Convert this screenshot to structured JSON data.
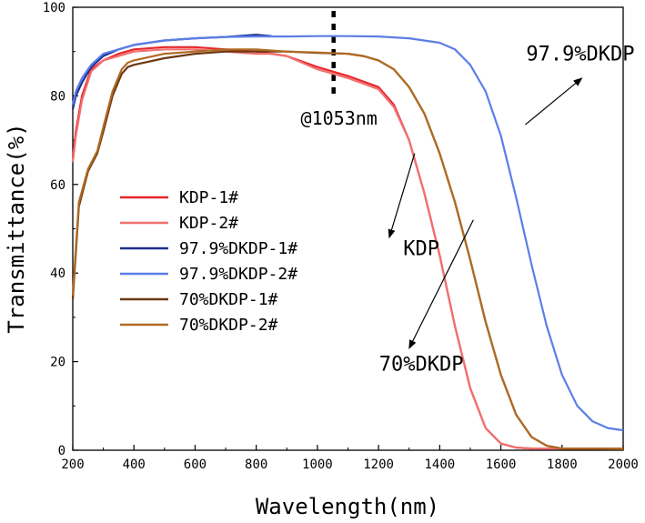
{
  "chart_data": {
    "type": "line",
    "title": "",
    "xlabel": "Wavelength(nm)",
    "ylabel": "Transmittance(%)",
    "xlim": [
      200,
      2000
    ],
    "ylim": [
      0,
      100
    ],
    "xticks": [
      200,
      400,
      600,
      800,
      1000,
      1200,
      1400,
      1600,
      1800,
      2000
    ],
    "yticks": [
      0,
      20,
      40,
      60,
      80,
      100
    ],
    "grid": false,
    "legend_position": "center-left",
    "marker_line": {
      "x": 1053,
      "label": "@1053nm"
    },
    "series": [
      {
        "name": "KDP-1#",
        "color": "#e8262b",
        "x": [
          200,
          210,
          230,
          260,
          300,
          350,
          400,
          500,
          600,
          700,
          800,
          850,
          900,
          1000,
          1100,
          1200,
          1250,
          1300,
          1350,
          1400,
          1450,
          1500,
          1550,
          1600,
          1650,
          1700,
          2000
        ],
        "y": [
          66,
          72,
          80,
          86,
          88,
          89.5,
          90.5,
          91,
          91,
          90.5,
          90,
          89.5,
          89,
          86.5,
          84.5,
          82,
          78,
          70,
          58,
          44,
          28,
          14,
          5,
          1.5,
          0.6,
          0.4,
          0.3
        ]
      },
      {
        "name": "KDP-2#",
        "color": "#f07070",
        "x": [
          200,
          210,
          230,
          260,
          300,
          350,
          400,
          500,
          600,
          700,
          800,
          850,
          900,
          1000,
          1100,
          1200,
          1250,
          1300,
          1350,
          1400,
          1450,
          1500,
          1550,
          1600,
          1650,
          1700,
          2000
        ],
        "y": [
          65,
          71,
          79,
          85.5,
          88,
          89,
          90,
          90.5,
          90.5,
          90,
          89.5,
          89.5,
          89,
          86,
          84,
          81.5,
          77.5,
          70,
          58,
          44,
          28,
          14,
          5,
          1.5,
          0.6,
          0.4,
          0.4
        ]
      },
      {
        "name": "97.9%DKDP-1#",
        "color": "#1f2e8c",
        "x": [
          200,
          210,
          230,
          260,
          300,
          350,
          400,
          500,
          600,
          700,
          800,
          850
        ],
        "y": [
          77,
          80,
          83,
          86.5,
          89,
          90.5,
          91.5,
          92.5,
          93,
          93.3,
          93.8,
          93.5
        ]
      },
      {
        "name": "97.9%DKDP-2#",
        "color": "#5b7ee8",
        "x": [
          200,
          210,
          230,
          260,
          300,
          350,
          400,
          500,
          600,
          700,
          800,
          900,
          1000,
          1100,
          1200,
          1300,
          1400,
          1450,
          1500,
          1550,
          1600,
          1650,
          1700,
          1750,
          1800,
          1850,
          1900,
          1950,
          2000
        ],
        "y": [
          78,
          81,
          84,
          87,
          89.5,
          90.5,
          91.5,
          92.5,
          93,
          93.3,
          93.4,
          93.4,
          93.5,
          93.5,
          93.4,
          93,
          92,
          90.5,
          87,
          81,
          71,
          57,
          42,
          28,
          17,
          10,
          6.5,
          5,
          4.5
        ]
      },
      {
        "name": "70%DKDP-1#",
        "color": "#6b3a14",
        "x": [
          200,
          220,
          250,
          280,
          300,
          330,
          360,
          380,
          400,
          500,
          600,
          700,
          800,
          900,
          1000,
          1100,
          1150,
          1200,
          1250,
          1300,
          1350,
          1400,
          1450,
          1500,
          1550,
          1600,
          1650,
          1700,
          1750,
          1800,
          2000
        ],
        "y": [
          34,
          55,
          63,
          67,
          72,
          80,
          85,
          86.5,
          87,
          88.5,
          89.5,
          90,
          90,
          90,
          89.7,
          89.5,
          89,
          88,
          86,
          82,
          76,
          67,
          56,
          43,
          29,
          17,
          8,
          3,
          1,
          0.4,
          0.3
        ]
      },
      {
        "name": "70%DKDP-2#",
        "color": "#b06a22",
        "x": [
          200,
          220,
          250,
          280,
          300,
          330,
          360,
          380,
          400,
          500,
          600,
          700,
          800,
          900,
          1000,
          1100,
          1150,
          1200,
          1250,
          1300,
          1350,
          1400,
          1450,
          1500,
          1550,
          1600,
          1650,
          1700,
          1750,
          1800,
          2000
        ],
        "y": [
          35,
          56,
          63.5,
          67.5,
          73,
          81,
          86,
          87.5,
          88,
          89.5,
          90,
          90.5,
          90.5,
          90,
          89.8,
          89.5,
          89,
          88,
          86,
          82,
          76,
          67,
          56,
          43,
          29,
          17,
          8,
          3,
          1,
          0.4,
          0.3
        ]
      }
    ],
    "annotations": [
      {
        "text": "97.9%DKDP",
        "x": 1860,
        "y": 88,
        "arrow_from": [
          1680,
          73.5
        ],
        "arrow_to": [
          1865,
          84
        ]
      },
      {
        "text": "KDP",
        "x": 1340,
        "y": 44,
        "arrow_from": [
          1318,
          67
        ],
        "arrow_to": [
          1235,
          48
        ]
      },
      {
        "text": "70%DKDP",
        "x": 1340,
        "y": 18,
        "arrow_from": [
          1510,
          52
        ],
        "arrow_to": [
          1300,
          23
        ]
      }
    ]
  }
}
